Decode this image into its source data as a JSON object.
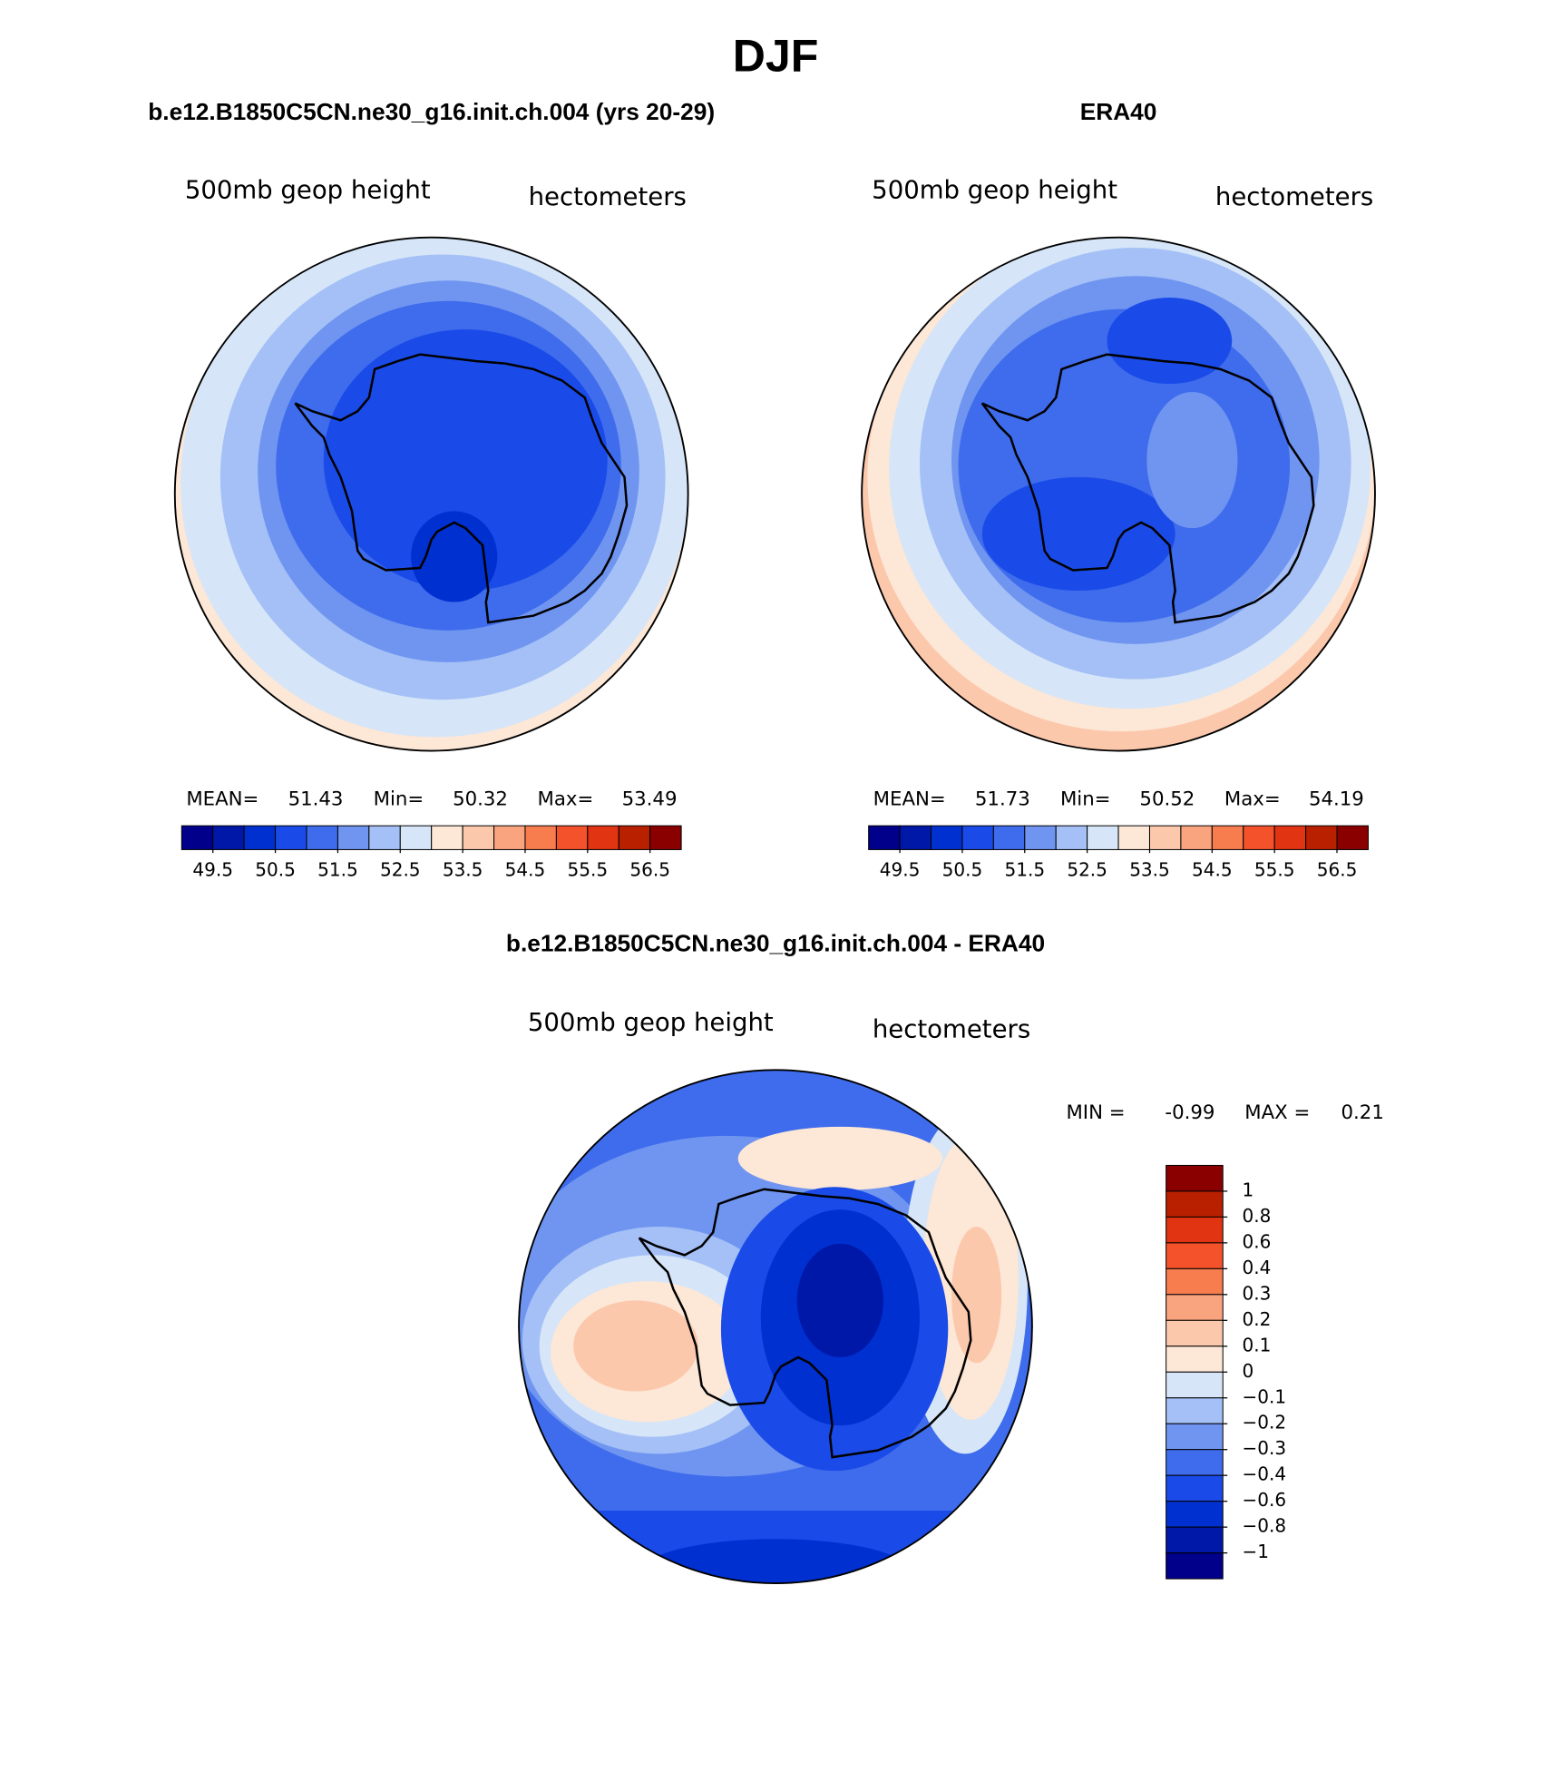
{
  "title": "DJF",
  "panels": [
    {
      "title": "b.e12.B1850C5CN.ne30_g16.init.ch.004 (yrs 20-29)",
      "left_label": "500mb geop height",
      "right_label": "hectometers",
      "stats": [
        {
          "label": "MEAN=",
          "value": 51.43
        },
        {
          "label": "Min=",
          "value": 50.32
        },
        {
          "label": "Max=",
          "value": 53.49
        }
      ],
      "colorbar": {
        "colors": [
          "#00008a",
          "#0018a8",
          "#0030d0",
          "#1a4be8",
          "#3e6cec",
          "#6f95f0",
          "#a4c0f6",
          "#d6e6f8",
          "#fde7d6",
          "#fcc8ac",
          "#f9a47e",
          "#f77c4e",
          "#f4522a",
          "#e03412",
          "#b82000",
          "#8a0000"
        ],
        "lim": [
          49,
          57
        ],
        "ticks": [
          49.5,
          50.5,
          51.5,
          52.5,
          53.5,
          54.5,
          55.5,
          56.5
        ]
      }
    },
    {
      "title": "ERA40",
      "left_label": "500mb geop height",
      "right_label": "hectometers",
      "stats": [
        {
          "label": "MEAN=",
          "value": 51.73
        },
        {
          "label": "Min=",
          "value": 50.52
        },
        {
          "label": "Max=",
          "value": 54.19
        }
      ],
      "colorbar": {
        "colors": [
          "#00008a",
          "#0018a8",
          "#0030d0",
          "#1a4be8",
          "#3e6cec",
          "#6f95f0",
          "#a4c0f6",
          "#d6e6f8",
          "#fde7d6",
          "#fcc8ac",
          "#f9a47e",
          "#f77c4e",
          "#f4522a",
          "#e03412",
          "#b82000",
          "#8a0000"
        ],
        "lim": [
          49,
          57
        ],
        "ticks": [
          49.5,
          50.5,
          51.5,
          52.5,
          53.5,
          54.5,
          55.5,
          56.5
        ]
      }
    },
    {
      "title": "b.e12.B1850C5CN.ne30_g16.init.ch.004 - ERA40",
      "left_label": "500mb geop height",
      "right_label": "hectometers",
      "stats": [
        {
          "label": "MIN =",
          "value": -0.99
        },
        {
          "label": "MAX =",
          "value": 0.21
        }
      ],
      "colorbar": {
        "colors": [
          "#8a0000",
          "#b82000",
          "#e03412",
          "#f4522a",
          "#f77c4e",
          "#f9a47e",
          "#fcc8ac",
          "#fde7d6",
          "#d6e6f8",
          "#a4c0f6",
          "#6f95f0",
          "#3e6cec",
          "#1a4be8",
          "#0030d0",
          "#0018a8",
          "#00008a"
        ],
        "ticks": [
          1,
          0.8,
          0.6,
          0.4,
          0.3,
          0.2,
          0.1,
          0,
          {
            "value": -0.1,
            "label": "−0.1"
          },
          {
            "value": -0.2,
            "label": "−0.2"
          },
          {
            "value": -0.3,
            "label": "−0.3"
          },
          {
            "value": -0.4,
            "label": "−0.4"
          },
          {
            "value": -0.6,
            "label": "−0.6"
          },
          {
            "value": -0.8,
            "label": "−0.8"
          },
          {
            "value": -1,
            "label": "−1"
          }
        ]
      }
    }
  ]
}
